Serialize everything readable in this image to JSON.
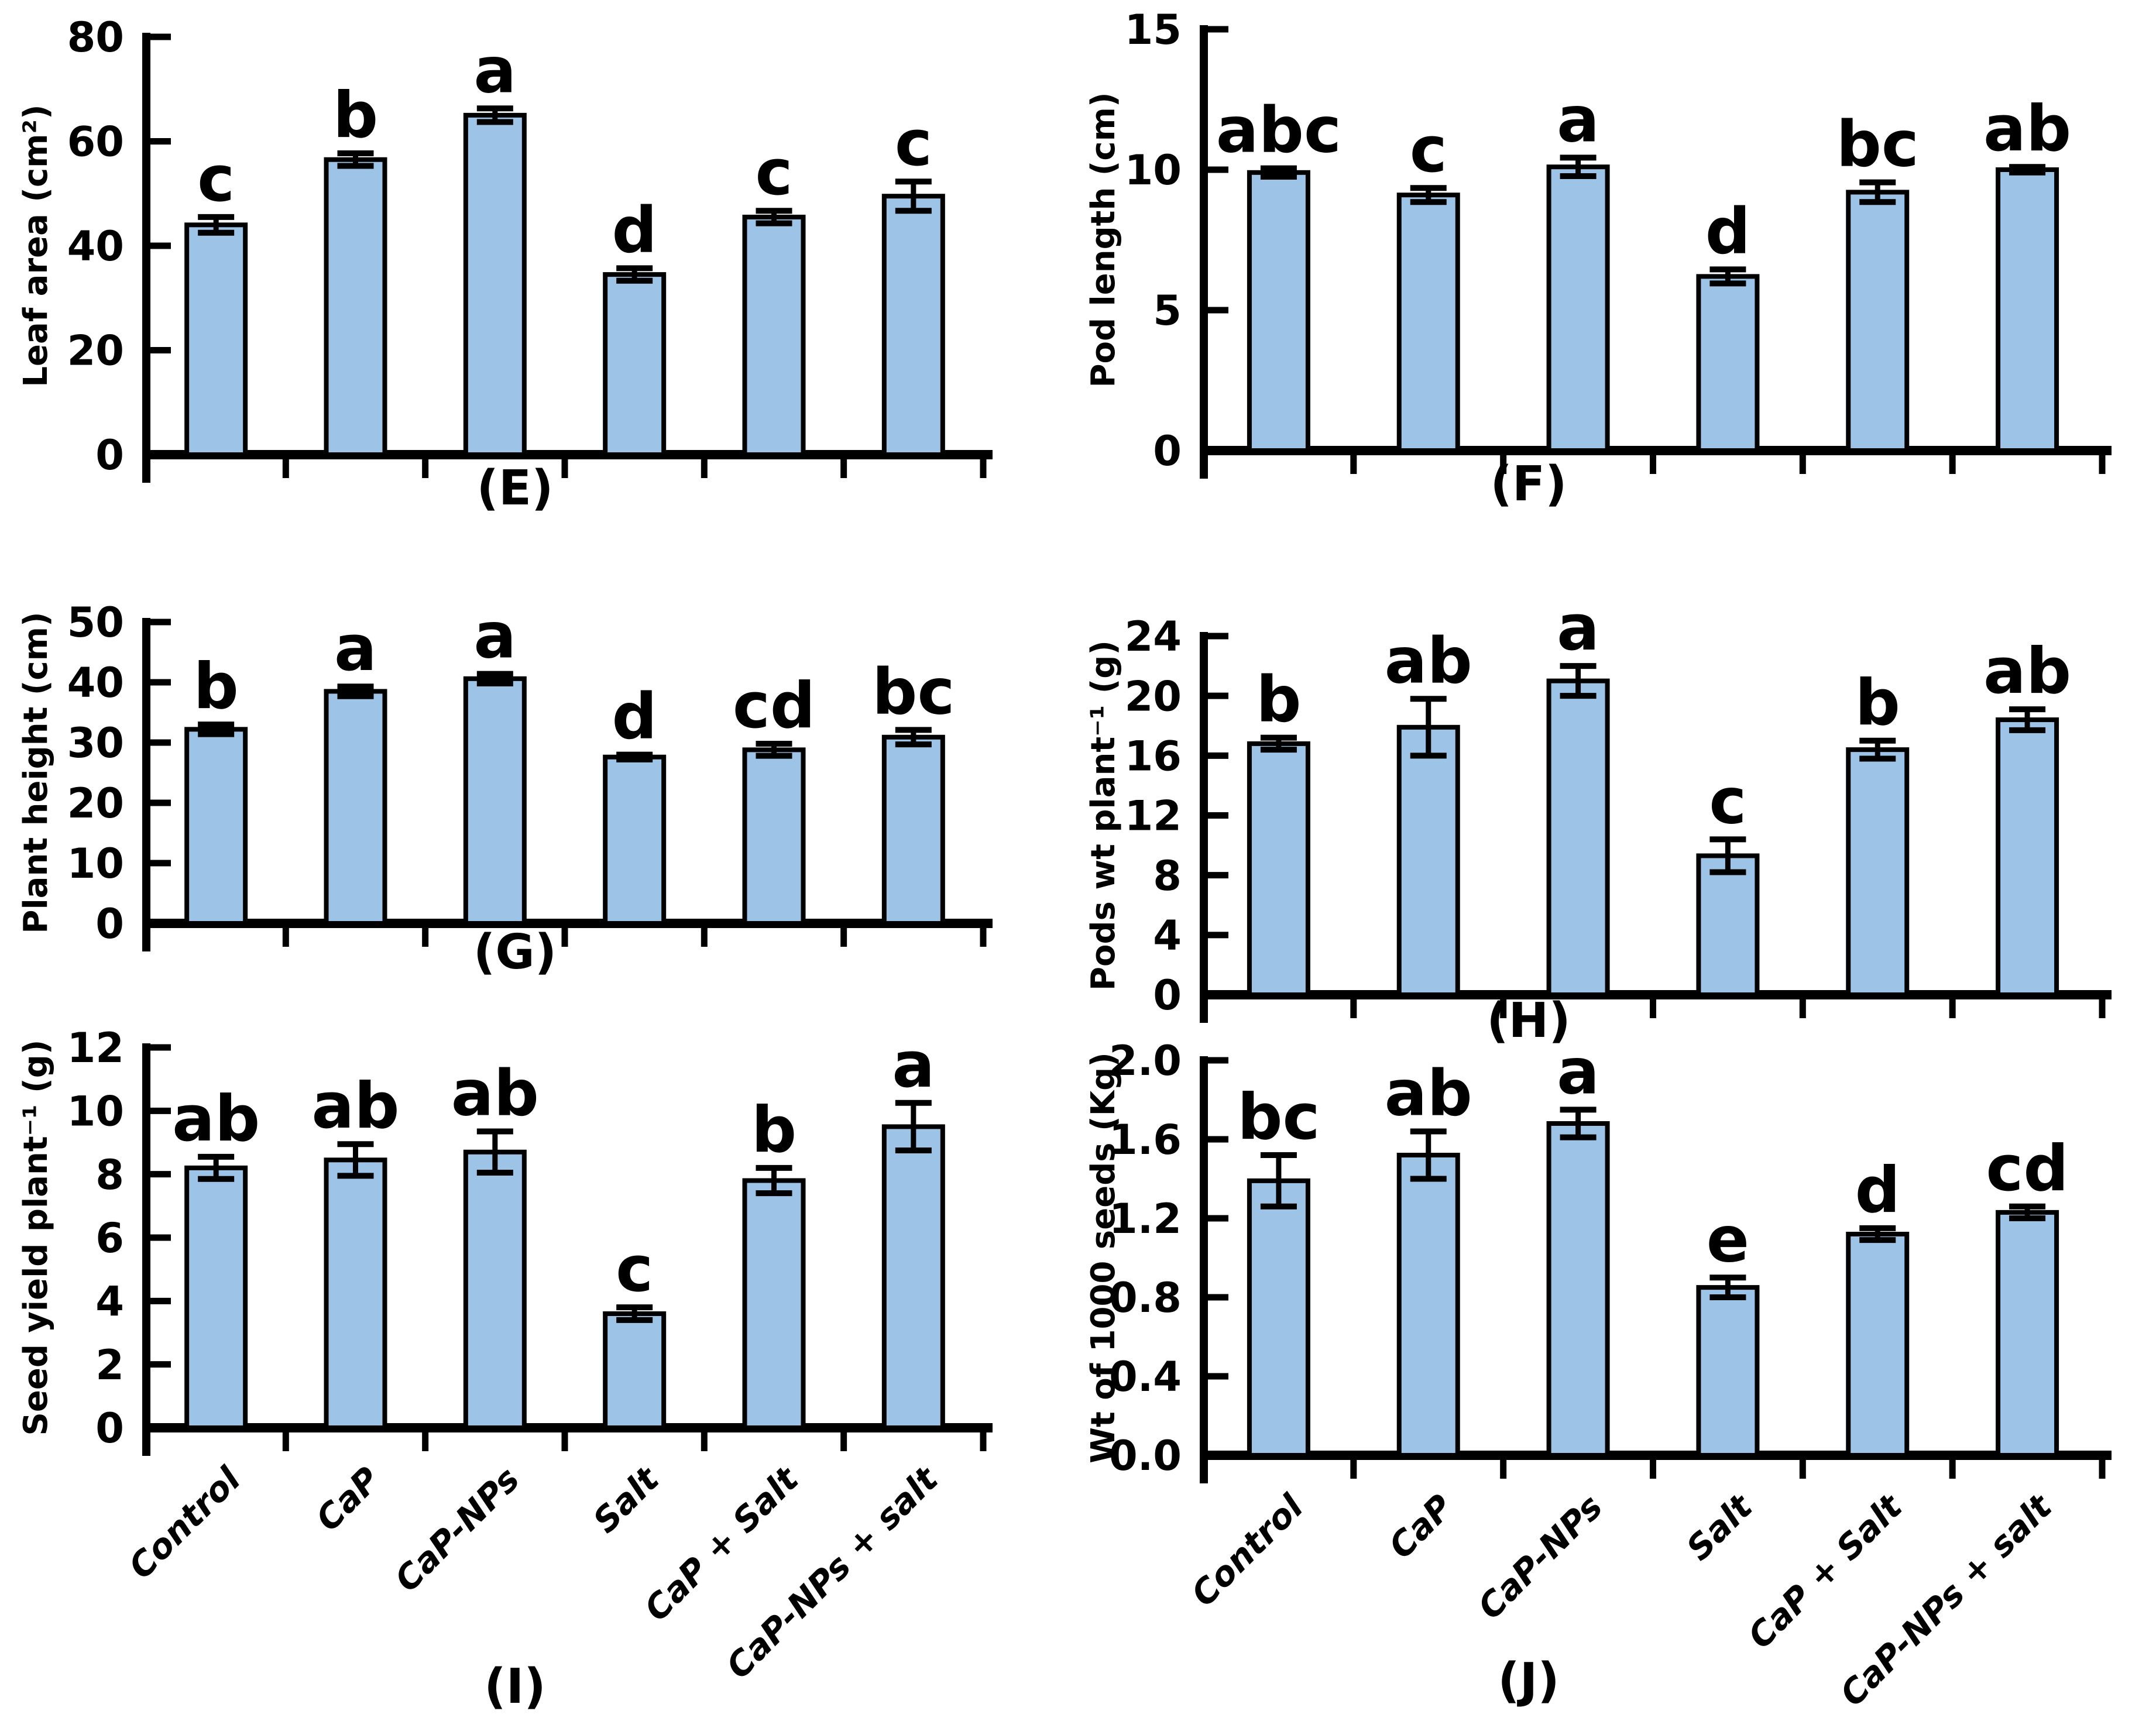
{
  "figure": {
    "background": "#ffffff",
    "bar_fill": "#9DC3E6",
    "bar_border": "#000000",
    "axis_color": "#000000",
    "error_bar_color": "#000000",
    "text_color": "#000000",
    "categories": [
      "Control",
      "CaP",
      "CaP-NPs",
      "Salt",
      "CaP + Salt",
      "CaP-NPs + salt"
    ]
  },
  "chart_data": [
    {
      "type": "bar",
      "panel_label": "(E)",
      "ylabel": "Leaf area (cm²)",
      "xlabel": "",
      "ylim": [
        0,
        80
      ],
      "yticks": [
        "0",
        "20",
        "40",
        "60",
        "80"
      ],
      "grid": false,
      "categories": [
        "Control",
        "CaP",
        "CaP-NPs",
        "Salt",
        "CaP + Salt",
        "CaP-NPs + salt"
      ],
      "values": [
        44,
        56.5,
        65,
        34.5,
        45.5,
        49.5
      ],
      "errors": [
        1.5,
        1.2,
        1.3,
        1.2,
        1.2,
        2.8
      ],
      "sig_letters": [
        "c",
        "b",
        "a",
        "d",
        "c",
        "c"
      ],
      "x_categories_visible": false
    },
    {
      "type": "bar",
      "panel_label": "(F)",
      "ylabel": "Pod length (cm)",
      "xlabel": "",
      "ylim": [
        0,
        15
      ],
      "yticks": [
        "0",
        "5",
        "10",
        "15"
      ],
      "grid": false,
      "categories": [
        "Control",
        "CaP",
        "CaP-NPs",
        "Salt",
        "CaP + Salt",
        "CaP-NPs + salt"
      ],
      "values": [
        9.9,
        9.1,
        10.1,
        6.2,
        9.2,
        10.0
      ],
      "errors": [
        0.15,
        0.25,
        0.33,
        0.25,
        0.35,
        0.1
      ],
      "sig_letters": [
        "abc",
        "c",
        "a",
        "d",
        "bc",
        "ab"
      ],
      "x_categories_visible": false
    },
    {
      "type": "bar",
      "panel_label": "(G)",
      "ylabel": "Plant height (cm)",
      "xlabel": "",
      "ylim": [
        0,
        50
      ],
      "yticks": [
        "0",
        "10",
        "20",
        "30",
        "40",
        "50"
      ],
      "grid": false,
      "categories": [
        "Control",
        "CaP",
        "CaP-NPs",
        "Salt",
        "CaP + Salt",
        "CaP-NPs + salt"
      ],
      "values": [
        32.2,
        38.5,
        40.6,
        27.6,
        28.8,
        30.9
      ],
      "errors": [
        0.8,
        0.8,
        0.8,
        0.4,
        1.0,
        1.2
      ],
      "sig_letters": [
        "b",
        "a",
        "a",
        "d",
        "cd",
        "bc"
      ],
      "x_categories_visible": false
    },
    {
      "type": "bar",
      "panel_label": "(H)",
      "ylabel": "Pods wt plant⁻¹ (g)",
      "xlabel": "",
      "ylim": [
        0,
        24
      ],
      "yticks": [
        "0",
        "4",
        "8",
        "12",
        "16",
        "20",
        "24"
      ],
      "grid": false,
      "categories": [
        "Control",
        "CaP",
        "CaP-NPs",
        "Salt",
        "CaP + Salt",
        "CaP-NPs + salt"
      ],
      "values": [
        16.8,
        17.9,
        21.0,
        9.3,
        16.4,
        18.4
      ],
      "errors": [
        0.4,
        1.9,
        1.0,
        1.1,
        0.6,
        0.7
      ],
      "sig_letters": [
        "b",
        "ab",
        "a",
        "c",
        "b",
        "ab"
      ],
      "x_categories_visible": false
    },
    {
      "type": "bar",
      "panel_label": "(I)",
      "ylabel": "Seed yield plant⁻¹ (g)",
      "xlabel": "",
      "ylim": [
        0,
        12
      ],
      "yticks": [
        "0",
        "2",
        "4",
        "6",
        "8",
        "10",
        "12"
      ],
      "grid": false,
      "categories": [
        "Control",
        "CaP",
        "CaP-NPs",
        "Salt",
        "CaP + Salt",
        "CaP-NPs + salt"
      ],
      "values": [
        8.2,
        8.45,
        8.7,
        3.6,
        7.8,
        9.5
      ],
      "errors": [
        0.35,
        0.5,
        0.65,
        0.2,
        0.4,
        0.75
      ],
      "sig_letters": [
        "ab",
        "ab",
        "ab",
        "c",
        "b",
        "a"
      ],
      "x_categories_visible": true
    },
    {
      "type": "bar",
      "panel_label": "(J)",
      "ylabel": "Wt of 1000 seeds (Kg)",
      "xlabel": "",
      "ylim": [
        0,
        2.0
      ],
      "yticks": [
        "0.0",
        "0.4",
        "0.8",
        "1.2",
        "1.6",
        "2.0"
      ],
      "grid": false,
      "categories": [
        "Control",
        "CaP",
        "CaP-NPs",
        "Salt",
        "CaP + Salt",
        "CaP-NPs + salt"
      ],
      "values": [
        1.39,
        1.52,
        1.68,
        0.85,
        1.12,
        1.23
      ],
      "errors": [
        0.13,
        0.12,
        0.07,
        0.05,
        0.03,
        0.03
      ],
      "sig_letters": [
        "bc",
        "ab",
        "a",
        "e",
        "d",
        "cd"
      ],
      "x_categories_visible": true
    }
  ]
}
